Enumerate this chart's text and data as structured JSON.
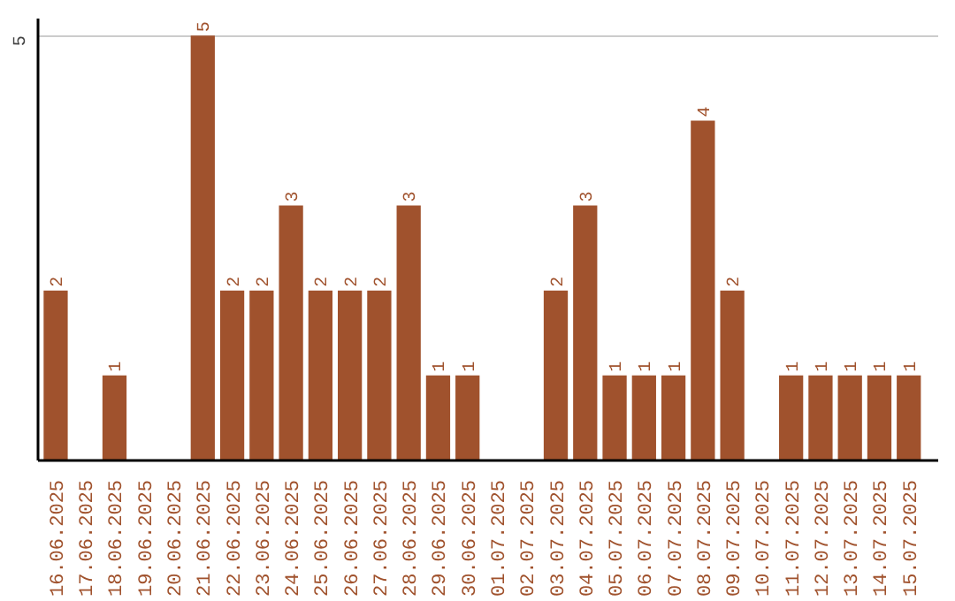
{
  "chart_data": {
    "type": "bar",
    "categories": [
      "16.06.2025",
      "17.06.2025",
      "18.06.2025",
      "19.06.2025",
      "20.06.2025",
      "21.06.2025",
      "22.06.2025",
      "23.06.2025",
      "24.06.2025",
      "25.06.2025",
      "26.06.2025",
      "27.06.2025",
      "28.06.2025",
      "29.06.2025",
      "30.06.2025",
      "01.07.2025",
      "02.07.2025",
      "03.07.2025",
      "04.07.2025",
      "05.07.2025",
      "06.07.2025",
      "07.07.2025",
      "08.07.2025",
      "09.07.2025",
      "10.07.2025",
      "11.07.2025",
      "12.07.2025",
      "13.07.2025",
      "14.07.2025",
      "15.07.2025"
    ],
    "values": [
      2,
      0,
      1,
      0,
      0,
      5,
      2,
      2,
      3,
      2,
      2,
      2,
      3,
      1,
      1,
      0,
      0,
      2,
      3,
      1,
      1,
      1,
      4,
      2,
      0,
      1,
      1,
      1,
      1,
      1
    ],
    "value_labels": [
      "2",
      null,
      "1",
      null,
      null,
      "5",
      "2",
      "2",
      "3",
      "2",
      "2",
      "2",
      "3",
      "1",
      "1",
      null,
      null,
      "2",
      "3",
      "1",
      "1",
      "1",
      "4",
      "2",
      null,
      "1",
      "1",
      "1",
      "1",
      "1"
    ],
    "color": "#a0522d",
    "ylim": [
      0,
      5.2
    ],
    "yticks": [
      5
    ],
    "grid": "y"
  }
}
